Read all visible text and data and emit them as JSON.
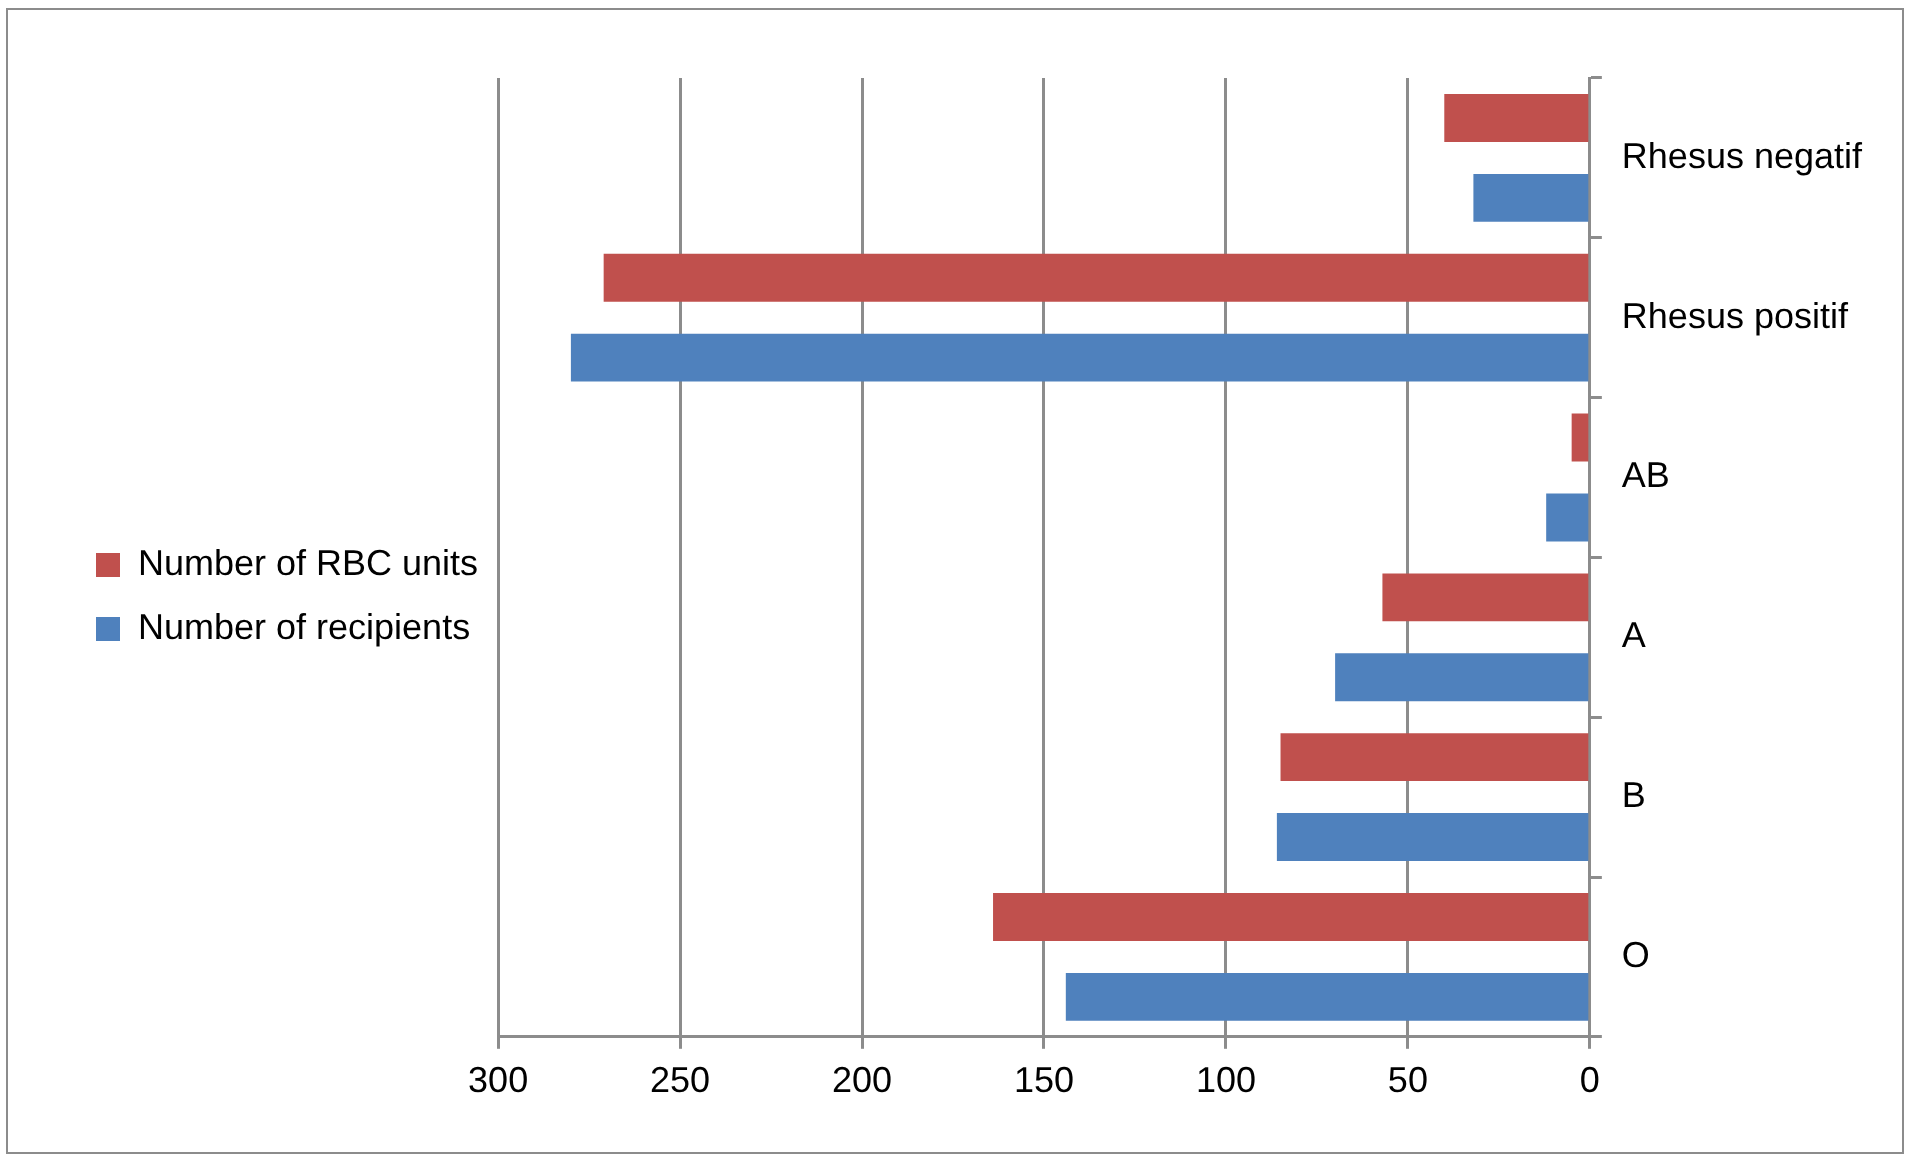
{
  "chart_data": {
    "type": "bar",
    "orientation": "horizontal",
    "categories": [
      "Rhesus negatif",
      "Rhesus positif",
      "AB",
      "A",
      "B",
      "O"
    ],
    "series": [
      {
        "name": "Number of RBC units",
        "color": "#c0504d",
        "values": [
          40,
          271,
          5,
          57,
          85,
          164
        ]
      },
      {
        "name": "Number of recipients",
        "color": "#4f81bd",
        "values": [
          32,
          280,
          12,
          70,
          86,
          144
        ]
      }
    ],
    "xlim": [
      300,
      0
    ],
    "xticks": [
      300,
      250,
      200,
      150,
      100,
      50,
      0
    ],
    "grid": "x",
    "legend": "left"
  }
}
